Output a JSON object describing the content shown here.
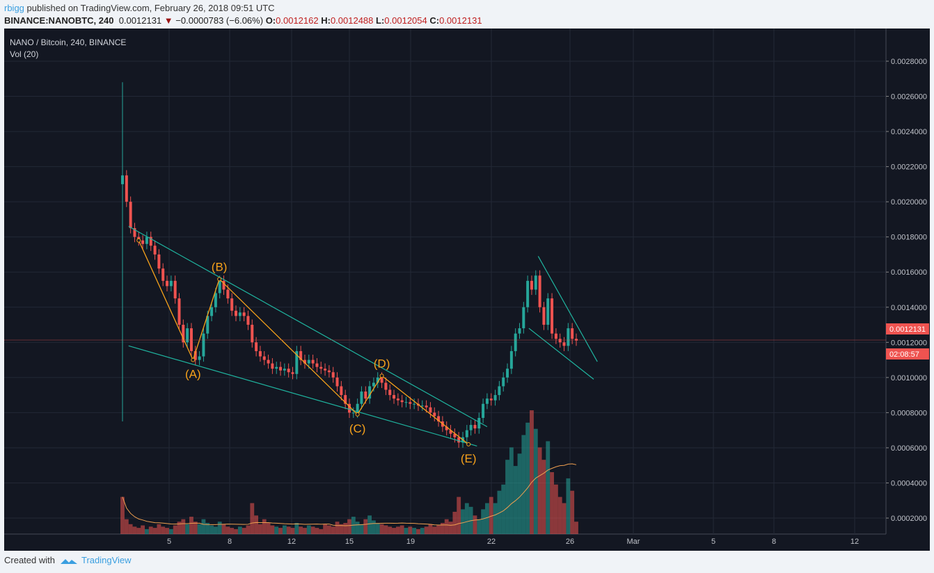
{
  "header": {
    "user": "rbigg",
    "published": "published on TradingView.com, February 26, 2018 09:51 UTC",
    "symbol": "BINANCE:NANOBTC, 240",
    "last": "0.0012131",
    "change": "−0.0000783 (−6.06%)",
    "o_label": "O:",
    "o": "0.0012162",
    "h_label": "H:",
    "h": "0.0012488",
    "l_label": "L:",
    "l": "0.0012054",
    "c_label": "C:",
    "c": "0.0012131"
  },
  "legend": {
    "title": "NANO / Bitcoin, 240, BINANCE",
    "vol": "Vol (20)"
  },
  "price_badge": "0.0012131",
  "countdown": "02:08:57",
  "footer": {
    "created": "Created with",
    "brand": "TradingView"
  },
  "colors": {
    "up": "#26a69a",
    "down": "#ef5350",
    "bg": "#131722",
    "wave": "#f7a21b",
    "trend": "#1fb5a0"
  },
  "chart_data": {
    "type": "candlestick",
    "ylim": [
      0.0001,
      0.0029
    ],
    "yticks": [
      "0.0028000",
      "0.0026000",
      "0.0024000",
      "0.0022000",
      "0.0020000",
      "0.0018000",
      "0.0016000",
      "0.0014000",
      "0.0012000",
      "0.0010000",
      "0.0008000",
      "0.0006000",
      "0.0004000",
      "0.0002000"
    ],
    "xticks": [
      "5",
      "8",
      "12",
      "15",
      "19",
      "22",
      "26",
      "Mar",
      "5",
      "8",
      "12"
    ],
    "first_candle": {
      "open": 0.0021,
      "high": 0.00268,
      "low": 0.00075
    },
    "closes": [
      0.00215,
      0.002,
      0.00185,
      0.0018,
      0.00178,
      0.00176,
      0.0018,
      0.00175,
      0.0017,
      0.00162,
      0.00155,
      0.00152,
      0.00155,
      0.00145,
      0.0013,
      0.0012,
      0.00128,
      0.00115,
      0.0011,
      0.00112,
      0.00125,
      0.00135,
      0.0014,
      0.00148,
      0.00155,
      0.0015,
      0.00145,
      0.00138,
      0.00135,
      0.00137,
      0.00135,
      0.0013,
      0.0012,
      0.00115,
      0.00112,
      0.0011,
      0.00108,
      0.00105,
      0.00106,
      0.00104,
      0.00105,
      0.00103,
      0.00102,
      0.00115,
      0.0011,
      0.00108,
      0.0011,
      0.00108,
      0.00106,
      0.00105,
      0.00104,
      0.00103,
      0.001,
      0.00095,
      0.0009,
      0.00085,
      0.0008,
      0.0008,
      0.00085,
      0.00092,
      0.00088,
      0.00095,
      0.00097,
      0.001,
      0.00097,
      0.00093,
      0.0009,
      0.00088,
      0.00087,
      0.00086,
      0.00086,
      0.00085,
      0.00085,
      0.00084,
      0.00084,
      0.00083,
      0.0008,
      0.00078,
      0.00075,
      0.00072,
      0.0007,
      0.00068,
      0.00066,
      0.00063,
      0.00066,
      0.0007,
      0.00073,
      0.00071,
      0.00077,
      0.00085,
      0.00088,
      0.00087,
      0.0009,
      0.00095,
      0.001,
      0.00105,
      0.00115,
      0.00125,
      0.00128,
      0.0014,
      0.00155,
      0.0015,
      0.00158,
      0.0014,
      0.0013,
      0.00145,
      0.00125,
      0.00122,
      0.0012,
      0.00118,
      0.00128,
      0.00122,
      0.00121
    ],
    "volumes": [
      30,
      12,
      8,
      6,
      5,
      7,
      4,
      6,
      5,
      8,
      6,
      5,
      4,
      7,
      10,
      12,
      8,
      14,
      10,
      8,
      12,
      9,
      7,
      6,
      10,
      8,
      6,
      5,
      4,
      6,
      5,
      7,
      25,
      15,
      8,
      12,
      9,
      7,
      6,
      5,
      7,
      6,
      5,
      9,
      6,
      5,
      7,
      6,
      5,
      4,
      8,
      7,
      6,
      10,
      8,
      9,
      12,
      14,
      10,
      8,
      12,
      15,
      11,
      9,
      8,
      7,
      6,
      5,
      6,
      7,
      5,
      6,
      5,
      4,
      5,
      6,
      8,
      6,
      7,
      9,
      12,
      10,
      18,
      30,
      20,
      25,
      22,
      15,
      12,
      20,
      25,
      30,
      25,
      35,
      40,
      60,
      70,
      55,
      65,
      80,
      90,
      100,
      85,
      70,
      60,
      75,
      50,
      40,
      30,
      25,
      45,
      35,
      10
    ],
    "vol_ma_period": 20,
    "wave_points": [
      {
        "label": "",
        "i": 4,
        "p": 0.00178
      },
      {
        "label": "(A)",
        "i": 17.4,
        "p": 0.0011
      },
      {
        "label": "(B)",
        "i": 23.9,
        "p": 0.00156
      },
      {
        "label": "(C)",
        "i": 58,
        "p": 0.00079
      },
      {
        "label": "(D)",
        "i": 64,
        "p": 0.00101
      },
      {
        "label": "(E)",
        "i": 85.4,
        "p": 0.00062
      }
    ],
    "trendlines": [
      {
        "from": [
          1.5,
          0.00186
        ],
        "to": [
          90,
          0.00072
        ]
      },
      {
        "from": [
          1.5,
          0.00118
        ],
        "to": [
          87.5,
          0.00061
        ]
      },
      {
        "from": [
          102.6,
          0.00169
        ],
        "to": [
          117.2,
          0.00109
        ]
      },
      {
        "from": [
          100.3,
          0.00128
        ],
        "to": [
          116.3,
          0.00099
        ]
      }
    ]
  }
}
